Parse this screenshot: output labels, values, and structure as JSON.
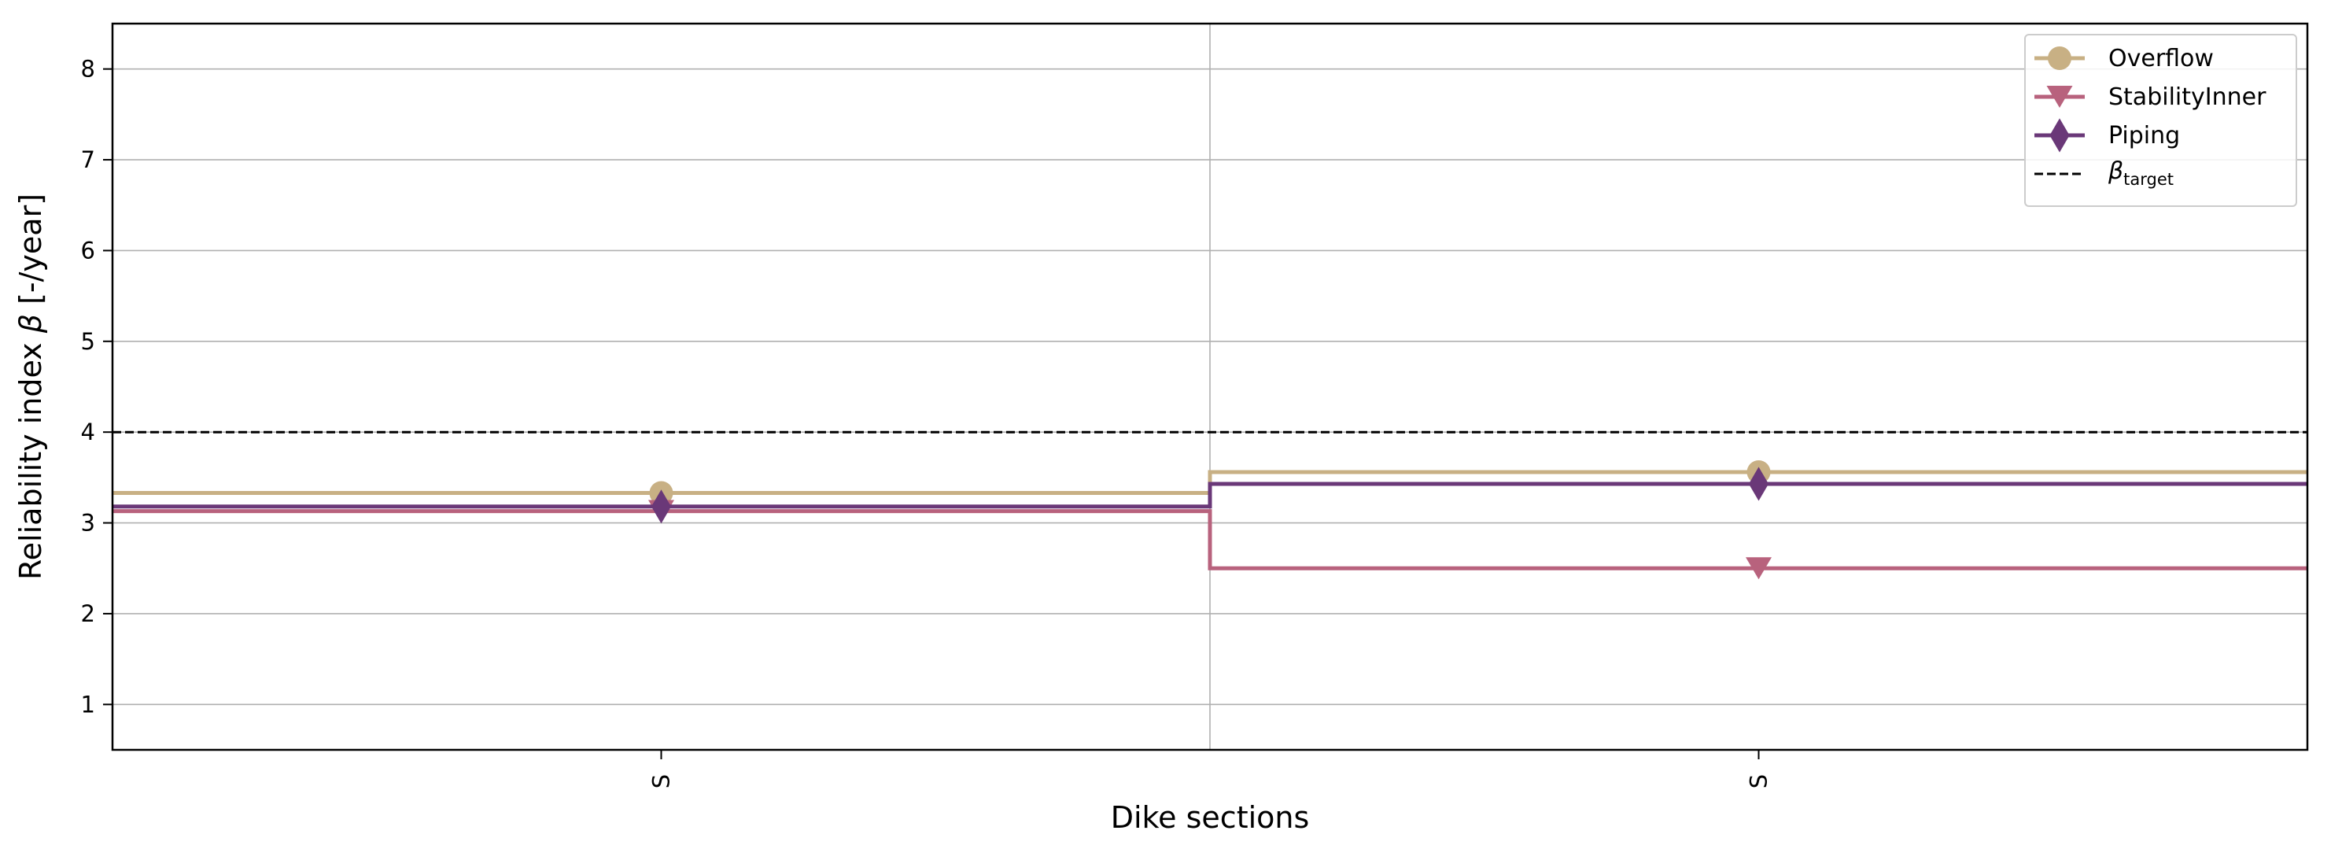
{
  "chart_data": {
    "type": "line",
    "drawstyle": "steps",
    "categories": [
      "S",
      "S"
    ],
    "xlabel": "Dike sections",
    "ylabel_main": "Reliability index ",
    "ylabel_symbol": "β",
    "ylabel_unit": " [-/year]",
    "ylim": [
      0.5,
      8.5
    ],
    "yticks": [
      1,
      2,
      3,
      4,
      5,
      6,
      7,
      8
    ],
    "grid": true,
    "legend_position": "top-right",
    "series": [
      {
        "name": "Overflow",
        "values": [
          3.33,
          3.56
        ],
        "color": "#c8b084",
        "marker": "circle"
      },
      {
        "name": "StabilityInner",
        "values": [
          3.13,
          2.5
        ],
        "color": "#b8627d",
        "marker": "triangle-down"
      },
      {
        "name": "Piping",
        "values": [
          3.18,
          3.43
        ],
        "color": "#6a3878",
        "marker": "diamond"
      }
    ],
    "target": {
      "value": 4.0,
      "label_symbol": "β",
      "label_sub": "target",
      "color": "#000000",
      "style": "dashed"
    }
  }
}
